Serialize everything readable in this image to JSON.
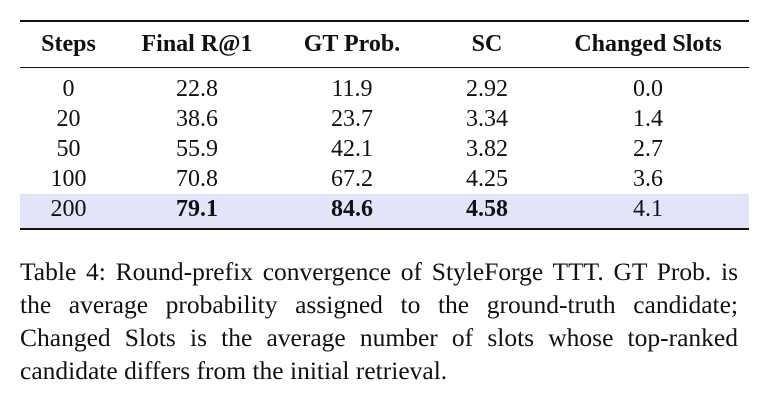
{
  "table": {
    "headers": [
      "Steps",
      "Final R@1",
      "GT Prob.",
      "SC",
      "Changed Slots"
    ],
    "rows": [
      {
        "cells": [
          "0",
          "22.8",
          "11.9",
          "2.92",
          "0.0"
        ],
        "bold": [
          false,
          false,
          false,
          false,
          false
        ],
        "highlight": false
      },
      {
        "cells": [
          "20",
          "38.6",
          "23.7",
          "3.34",
          "1.4"
        ],
        "bold": [
          false,
          false,
          false,
          false,
          false
        ],
        "highlight": false
      },
      {
        "cells": [
          "50",
          "55.9",
          "42.1",
          "3.82",
          "2.7"
        ],
        "bold": [
          false,
          false,
          false,
          false,
          false
        ],
        "highlight": false
      },
      {
        "cells": [
          "100",
          "70.8",
          "67.2",
          "4.25",
          "3.6"
        ],
        "bold": [
          false,
          false,
          false,
          false,
          false
        ],
        "highlight": false
      },
      {
        "cells": [
          "200",
          "79.1",
          "84.6",
          "4.58",
          "4.1"
        ],
        "bold": [
          false,
          true,
          true,
          true,
          false
        ],
        "highlight": true
      }
    ],
    "highlight_color": "#e3e3fa"
  },
  "caption": "Table 4: Round-prefix convergence of StyleForge TTT. GT Prob. is the average probability assigned to the ground-truth candidate; Changed Slots is the average number of slots whose top-ranked candidate differs from the initial retrieval."
}
